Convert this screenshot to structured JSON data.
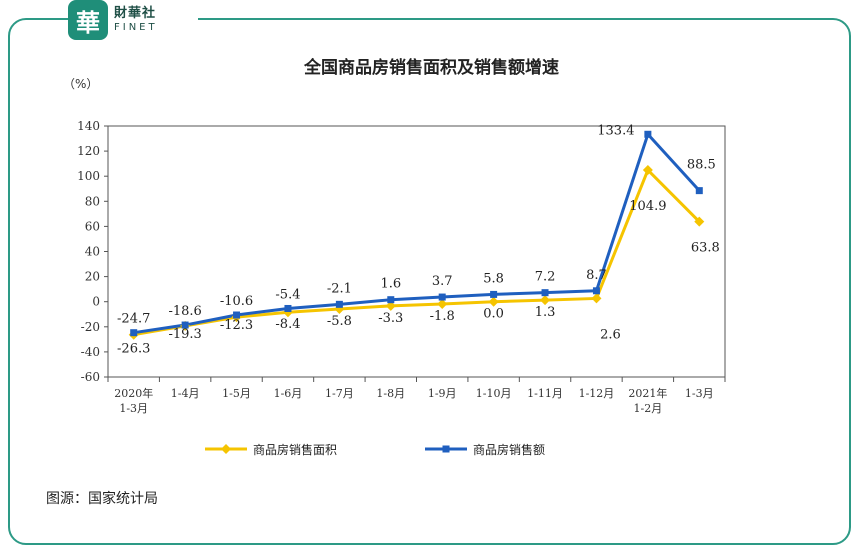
{
  "logo": {
    "mark": "華",
    "name_cn": "財華社",
    "name_en": "FINET"
  },
  "chart_data": {
    "type": "line",
    "title": "全国商品房销售面积及销售额增速",
    "ylabel": "（%）",
    "xlabel": "",
    "ylim": [
      -60,
      140
    ],
    "yticks": [
      140,
      120,
      100,
      80,
      60,
      40,
      20,
      0,
      -20,
      -40,
      -60
    ],
    "categories": [
      [
        "2020年",
        "1-3月"
      ],
      [
        "1-4月"
      ],
      [
        "1-5月"
      ],
      [
        "1-6月"
      ],
      [
        "1-7月"
      ],
      [
        "1-8月"
      ],
      [
        "1-9月"
      ],
      [
        "1-10月"
      ],
      [
        "1-11月"
      ],
      [
        "1-12月"
      ],
      [
        "2021年",
        "1-2月"
      ],
      [
        "1-3月"
      ]
    ],
    "series": [
      {
        "name": "商品房销售面积",
        "color": "#f5c400",
        "marker": "diamond",
        "values": [
          -26.3,
          -19.3,
          -12.3,
          -8.4,
          -5.8,
          -3.3,
          -1.8,
          0.0,
          1.3,
          2.6,
          104.9,
          63.8
        ],
        "labels": [
          "-26.3",
          "-19.3",
          "-12.3",
          "-8.4",
          "-5.8",
          "-3.3",
          "-1.8",
          "0.0",
          "1.3",
          "2.6",
          "104.9",
          "63.8"
        ]
      },
      {
        "name": "商品房销售额",
        "color": "#1f5fbf",
        "marker": "square",
        "values": [
          -24.7,
          -18.6,
          -10.6,
          -5.4,
          -2.1,
          1.6,
          3.7,
          5.8,
          7.2,
          8.7,
          133.4,
          88.5
        ],
        "labels": [
          "-24.7",
          "-18.6",
          "-10.6",
          "-5.4",
          "-2.1",
          "1.6",
          "3.7",
          "5.8",
          "7.2",
          "8.7",
          "133.4",
          "88.5"
        ]
      }
    ],
    "legend": "bottom"
  },
  "source": "图源：国家统计局"
}
